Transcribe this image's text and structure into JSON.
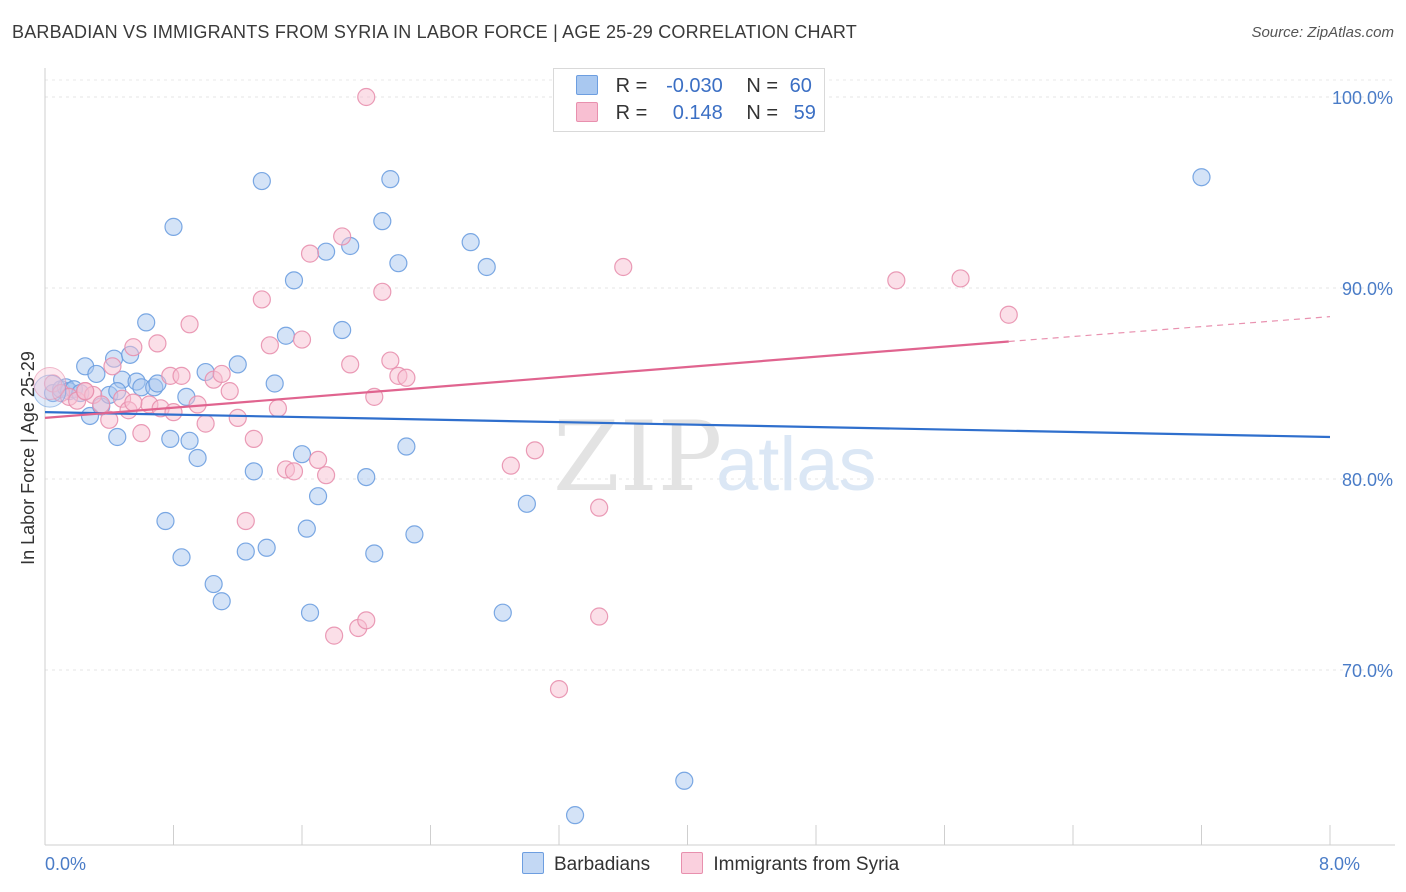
{
  "title": "BARBADIAN VS IMMIGRANTS FROM SYRIA IN LABOR FORCE | AGE 25-29 CORRELATION CHART",
  "source": "Source: ZipAtlas.com",
  "watermark": {
    "zip": "ZIP",
    "atlas": "atlas"
  },
  "legend": {
    "rows": [
      {
        "r_label": "R =",
        "r_value": "-0.030",
        "n_label": "N =",
        "n_value": "60",
        "color": "#a9c8f0",
        "border": "#6d9ee0"
      },
      {
        "r_label": "R =",
        "r_value": "0.148",
        "n_label": "N =",
        "n_value": "59",
        "color": "#f8bfd2",
        "border": "#e890ae"
      }
    ]
  },
  "bottom_legend": [
    "Barbadians",
    "Immigrants from Syria"
  ],
  "chart_data": {
    "type": "scatter",
    "title": "BARBADIAN VS IMMIGRANTS FROM SYRIA IN LABOR FORCE | AGE 25-29 CORRELATION CHART",
    "xlabel": "",
    "ylabel": "In Labor Force | Age 25-29",
    "xlim": [
      0,
      8
    ],
    "ylim": [
      61.5,
      101.5
    ],
    "x_tick_labels": [
      {
        "value": 0,
        "label": "0.0%"
      },
      {
        "value": 8,
        "label": "8.0%"
      }
    ],
    "y_tick_labels": [
      {
        "value": 100,
        "label": "100.0%"
      },
      {
        "value": 90,
        "label": "90.0%"
      },
      {
        "value": 80,
        "label": "80.0%"
      },
      {
        "value": 70,
        "label": "70.0%"
      }
    ],
    "grid": true,
    "legend_position": "top-center",
    "series": [
      {
        "name": "Barbadians",
        "color": "#6d9ee0",
        "fill": "#a9c8f0",
        "trend": {
          "x0": 0,
          "y0": 83.5,
          "x1": 8,
          "y1": 82.2,
          "color": "#2f6fcd"
        },
        "points": [
          [
            0.05,
            84.5
          ],
          [
            0.1,
            84.7
          ],
          [
            0.13,
            84.8
          ],
          [
            0.15,
            84.6
          ],
          [
            0.18,
            84.7
          ],
          [
            0.22,
            84.5
          ],
          [
            0.25,
            85.9
          ],
          [
            0.28,
            83.3
          ],
          [
            0.32,
            85.5
          ],
          [
            0.35,
            83.8
          ],
          [
            0.4,
            84.4
          ],
          [
            0.43,
            86.3
          ],
          [
            0.45,
            82.2
          ],
          [
            0.48,
            85.2
          ],
          [
            0.53,
            86.5
          ],
          [
            0.57,
            85.1
          ],
          [
            0.6,
            84.8
          ],
          [
            0.63,
            88.2
          ],
          [
            0.68,
            84.8
          ],
          [
            0.7,
            85.0
          ],
          [
            0.75,
            77.8
          ],
          [
            0.78,
            82.1
          ],
          [
            0.8,
            93.2
          ],
          [
            0.85,
            75.9
          ],
          [
            0.88,
            84.3
          ],
          [
            0.9,
            82.0
          ],
          [
            0.95,
            81.1
          ],
          [
            1.0,
            85.6
          ],
          [
            1.05,
            74.5
          ],
          [
            1.1,
            73.6
          ],
          [
            1.2,
            86.0
          ],
          [
            1.25,
            76.2
          ],
          [
            1.3,
            80.4
          ],
          [
            1.35,
            95.6
          ],
          [
            1.38,
            76.4
          ],
          [
            1.43,
            85.0
          ],
          [
            1.5,
            87.5
          ],
          [
            1.55,
            90.4
          ],
          [
            1.6,
            81.3
          ],
          [
            1.63,
            77.4
          ],
          [
            1.65,
            73.0
          ],
          [
            1.7,
            79.1
          ],
          [
            1.75,
            91.9
          ],
          [
            1.85,
            87.8
          ],
          [
            1.9,
            92.2
          ],
          [
            2.0,
            80.1
          ],
          [
            2.05,
            76.1
          ],
          [
            2.1,
            93.5
          ],
          [
            2.15,
            95.7
          ],
          [
            2.2,
            91.3
          ],
          [
            2.25,
            81.7
          ],
          [
            2.3,
            77.1
          ],
          [
            2.65,
            92.4
          ],
          [
            2.75,
            91.1
          ],
          [
            2.85,
            73.0
          ],
          [
            3.0,
            78.7
          ],
          [
            3.3,
            62.4
          ],
          [
            3.98,
            64.2
          ],
          [
            7.2,
            95.8
          ],
          [
            0.45,
            84.6
          ]
        ]
      },
      {
        "name": "Immigrants from Syria",
        "color": "#e890ae",
        "fill": "#f8bfd2",
        "trend": {
          "x0": 0,
          "y0": 83.2,
          "x1": 6.0,
          "y1": 87.2,
          "color": "#e0648f"
        },
        "trend_extension": {
          "x0": 6.0,
          "y0": 87.2,
          "x1": 8,
          "y1": 88.5
        },
        "points": [
          [
            0.05,
            85.0
          ],
          [
            0.1,
            84.5
          ],
          [
            0.15,
            84.3
          ],
          [
            0.2,
            84.1
          ],
          [
            0.25,
            84.6
          ],
          [
            0.3,
            84.4
          ],
          [
            0.35,
            83.9
          ],
          [
            0.4,
            83.1
          ],
          [
            0.42,
            85.9
          ],
          [
            0.48,
            84.2
          ],
          [
            0.52,
            83.6
          ],
          [
            0.55,
            86.9
          ],
          [
            0.6,
            82.4
          ],
          [
            0.65,
            83.9
          ],
          [
            0.7,
            87.1
          ],
          [
            0.72,
            83.7
          ],
          [
            0.78,
            85.4
          ],
          [
            0.8,
            83.5
          ],
          [
            0.85,
            85.4
          ],
          [
            0.9,
            88.1
          ],
          [
            0.95,
            83.9
          ],
          [
            1.0,
            82.9
          ],
          [
            1.05,
            85.2
          ],
          [
            1.1,
            85.5
          ],
          [
            1.15,
            84.6
          ],
          [
            1.2,
            83.2
          ],
          [
            1.25,
            77.8
          ],
          [
            1.3,
            82.1
          ],
          [
            1.35,
            89.4
          ],
          [
            1.4,
            87.0
          ],
          [
            1.45,
            83.7
          ],
          [
            1.5,
            80.5
          ],
          [
            1.55,
            80.4
          ],
          [
            1.6,
            87.3
          ],
          [
            1.65,
            91.8
          ],
          [
            1.7,
            81.0
          ],
          [
            1.75,
            80.2
          ],
          [
            1.8,
            71.8
          ],
          [
            1.85,
            92.7
          ],
          [
            1.9,
            86.0
          ],
          [
            1.95,
            72.2
          ],
          [
            2.0,
            72.6
          ],
          [
            2.05,
            84.3
          ],
          [
            2.1,
            89.8
          ],
          [
            2.15,
            86.2
          ],
          [
            2.2,
            85.4
          ],
          [
            2.25,
            85.3
          ],
          [
            2.0,
            100.0
          ],
          [
            2.9,
            80.7
          ],
          [
            3.05,
            81.5
          ],
          [
            3.2,
            69.0
          ],
          [
            3.45,
            72.8
          ],
          [
            3.45,
            78.5
          ],
          [
            3.6,
            91.1
          ],
          [
            5.3,
            90.4
          ],
          [
            5.7,
            90.5
          ],
          [
            6.0,
            88.6
          ],
          [
            0.55,
            84.0
          ],
          [
            0.25,
            84.6
          ]
        ]
      }
    ]
  }
}
